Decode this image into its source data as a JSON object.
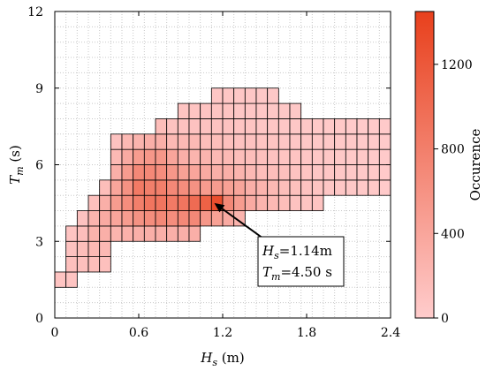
{
  "chart_data": {
    "type": "heatmap",
    "x_label_main": "H",
    "x_label_sub": "s",
    "x_label_unit": " (m)",
    "y_label_main": "T",
    "y_label_sub": "m",
    "y_label_unit": " (s)",
    "xlim": [
      0,
      2.4
    ],
    "ylim": [
      0,
      12
    ],
    "x_ticks": [
      "0",
      "0.6",
      "1.2",
      "1.8",
      "2.4"
    ],
    "y_ticks": [
      "0",
      "3",
      "6",
      "9",
      "12"
    ],
    "x_bin": 0.08,
    "y_bin": 0.6,
    "colorbar": {
      "label": "Occurence",
      "ticks": [
        "0",
        "400",
        "800",
        "1200"
      ],
      "range": [
        0,
        1450
      ],
      "color_low": "#ffcccc",
      "color_high": "#e8401c"
    },
    "annotation": {
      "line1_main": "H",
      "line1_sub": "s",
      "line1_text": "=1.14m",
      "line2_main": "T",
      "line2_sub": "m",
      "line2_text": "=4.50 s",
      "x": 1.14,
      "y": 4.5
    },
    "columns": [
      {
        "x0": 0.0,
        "y0": 1.2,
        "values": [
          80
        ]
      },
      {
        "x0": 0.08,
        "y0": 1.2,
        "values": [
          80,
          120,
          100,
          80
        ]
      },
      {
        "x0": 0.16,
        "y0": 1.8,
        "values": [
          120,
          150,
          140,
          100
        ]
      },
      {
        "x0": 0.24,
        "y0": 1.8,
        "values": [
          150,
          200,
          260,
          250,
          120
        ]
      },
      {
        "x0": 0.32,
        "y0": 1.8,
        "values": [
          120,
          200,
          300,
          350,
          300,
          150
        ]
      },
      {
        "x0": 0.4,
        "y0": 3.0,
        "values": [
          250,
          400,
          500,
          400,
          300,
          200,
          100
        ]
      },
      {
        "x0": 0.48,
        "y0": 3.0,
        "values": [
          280,
          500,
          650,
          600,
          500,
          350,
          200
        ]
      },
      {
        "x0": 0.56,
        "y0": 3.0,
        "values": [
          300,
          600,
          800,
          850,
          700,
          500,
          250
        ]
      },
      {
        "x0": 0.64,
        "y0": 3.0,
        "values": [
          300,
          650,
          900,
          800,
          700,
          550,
          300
        ]
      },
      {
        "x0": 0.72,
        "y0": 3.0,
        "values": [
          300,
          700,
          900,
          800,
          650,
          550,
          300,
          150
        ]
      },
      {
        "x0": 0.8,
        "y0": 3.0,
        "values": [
          300,
          650,
          850,
          700,
          550,
          400,
          200,
          100
        ]
      },
      {
        "x0": 0.88,
        "y0": 3.0,
        "values": [
          300,
          700,
          900,
          650,
          450,
          300,
          200,
          100,
          80
        ]
      },
      {
        "x0": 0.96,
        "y0": 3.0,
        "values": [
          300,
          700,
          1000,
          600,
          400,
          250,
          200,
          100,
          80
        ]
      },
      {
        "x0": 1.04,
        "y0": 3.6,
        "values": [
          550,
          1100,
          500,
          350,
          250,
          150,
          100,
          80
        ]
      },
      {
        "x0": 1.12,
        "y0": 3.6,
        "values": [
          450,
          1300,
          500,
          300,
          200,
          150,
          100,
          80,
          60
        ]
      },
      {
        "x0": 1.2,
        "y0": 3.6,
        "values": [
          350,
          700,
          450,
          300,
          200,
          120,
          100,
          80,
          60
        ]
      },
      {
        "x0": 1.28,
        "y0": 3.6,
        "values": [
          250,
          500,
          400,
          250,
          150,
          100,
          80,
          60,
          50
        ]
      },
      {
        "x0": 1.36,
        "y0": 4.2,
        "values": [
          350,
          300,
          200,
          150,
          100,
          80,
          60,
          50
        ]
      },
      {
        "x0": 1.44,
        "y0": 4.2,
        "values": [
          250,
          250,
          150,
          120,
          80,
          60,
          50,
          40
        ]
      },
      {
        "x0": 1.52,
        "y0": 4.2,
        "values": [
          200,
          200,
          150,
          100,
          80,
          60,
          50,
          40
        ]
      },
      {
        "x0": 1.6,
        "y0": 4.2,
        "values": [
          150,
          150,
          120,
          80,
          60,
          50,
          40
        ]
      },
      {
        "x0": 1.68,
        "y0": 4.2,
        "values": [
          100,
          120,
          100,
          80,
          60,
          50,
          40
        ]
      },
      {
        "x0": 1.76,
        "y0": 4.2,
        "values": [
          80,
          100,
          80,
          60,
          50,
          40
        ]
      },
      {
        "x0": 1.84,
        "y0": 4.2,
        "values": [
          80,
          80,
          60,
          50,
          40,
          30
        ]
      },
      {
        "x0": 1.92,
        "y0": 4.8,
        "values": [
          60,
          60,
          50,
          40,
          30
        ]
      },
      {
        "x0": 2.0,
        "y0": 4.8,
        "values": [
          50,
          50,
          40,
          30,
          30
        ]
      },
      {
        "x0": 2.08,
        "y0": 4.8,
        "values": [
          40,
          40,
          30,
          30,
          20
        ]
      },
      {
        "x0": 2.16,
        "y0": 4.8,
        "values": [
          30,
          30,
          30,
          20,
          20
        ]
      },
      {
        "x0": 2.24,
        "y0": 4.8,
        "values": [
          30,
          30,
          20,
          20,
          20
        ]
      },
      {
        "x0": 2.32,
        "y0": 4.8,
        "values": [
          20,
          20,
          20,
          20,
          20
        ]
      }
    ]
  }
}
